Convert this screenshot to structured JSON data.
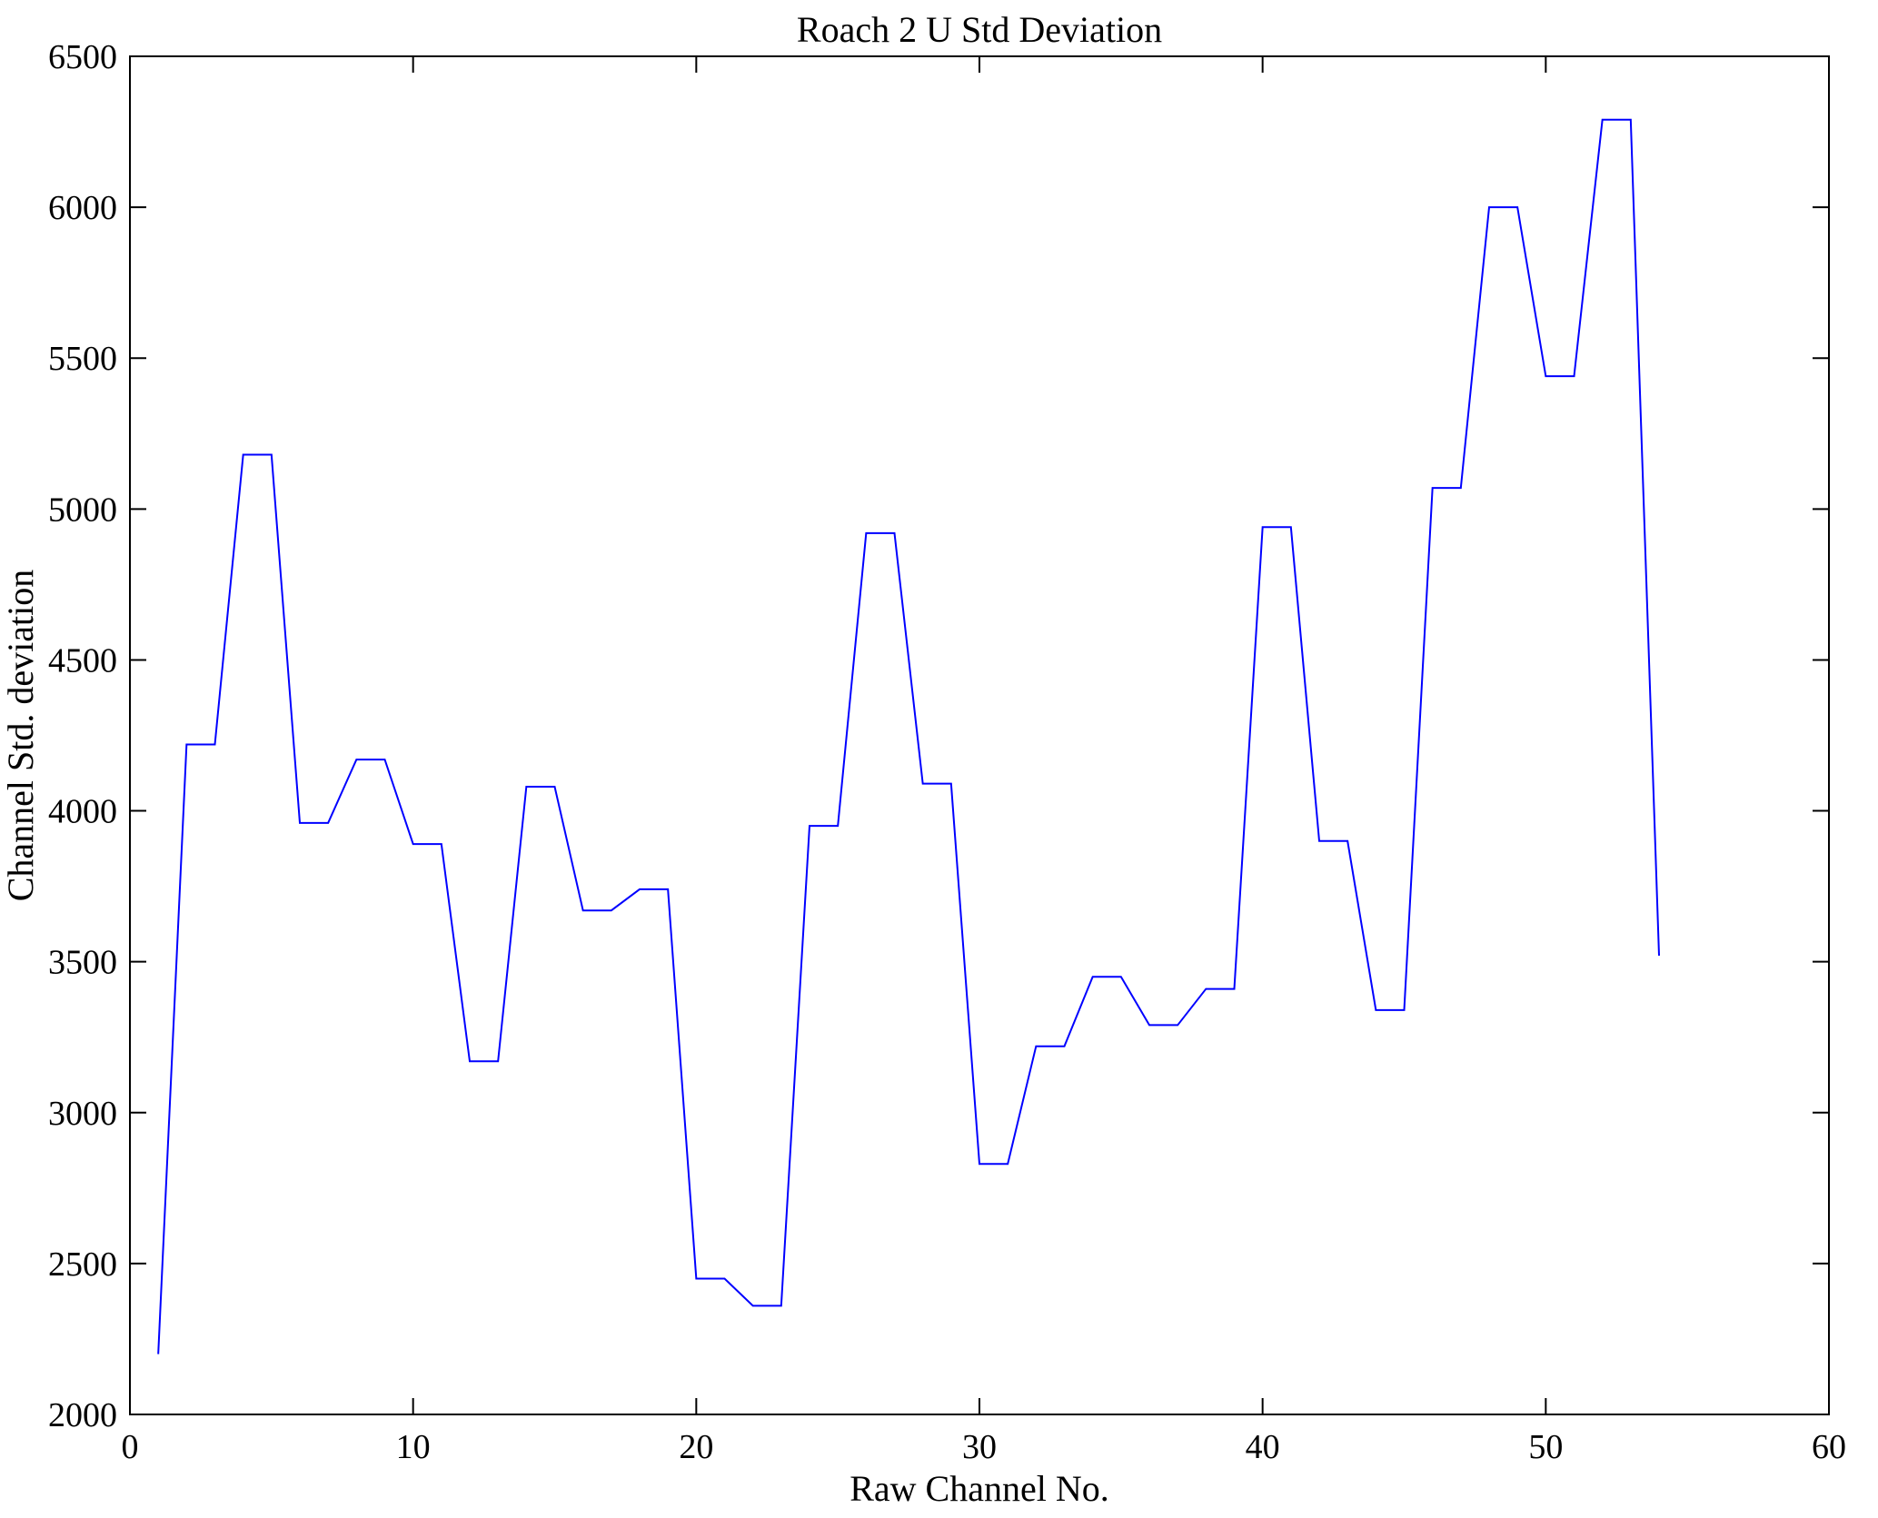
{
  "figure": {
    "background": "#ffffff"
  },
  "chart_data": {
    "type": "line",
    "title": "Roach 2 U Std Deviation",
    "xlabel": "Raw Channel No.",
    "ylabel": "Channel Std. deviation",
    "xlim": [
      0,
      60
    ],
    "ylim": [
      2000,
      6500
    ],
    "x_ticks": [
      0,
      10,
      20,
      30,
      40,
      50,
      60
    ],
    "y_ticks": [
      2000,
      2500,
      3000,
      3500,
      4000,
      4500,
      5000,
      5500,
      6000,
      6500
    ],
    "grid": false,
    "legend": "none",
    "line_color": "#0000ff",
    "axis_color": "#000000",
    "x": [
      1,
      2,
      3,
      4,
      5,
      6,
      7,
      8,
      9,
      10,
      11,
      12,
      13,
      14,
      15,
      16,
      17,
      18,
      19,
      20,
      21,
      22,
      23,
      24,
      25,
      26,
      27,
      28,
      29,
      30,
      31,
      32,
      33,
      34,
      35,
      36,
      37,
      38,
      39,
      40,
      41,
      42,
      43,
      44,
      45,
      46,
      47,
      48,
      49,
      50,
      51,
      52,
      53,
      54
    ],
    "y": [
      2200,
      4220,
      4220,
      5180,
      5180,
      3960,
      3960,
      4170,
      4170,
      3890,
      3890,
      3170,
      3170,
      4080,
      4080,
      3670,
      3670,
      3740,
      3740,
      2450,
      2450,
      2360,
      2360,
      3950,
      3950,
      4920,
      4920,
      4090,
      4090,
      2830,
      2830,
      3220,
      3220,
      3450,
      3450,
      3290,
      3290,
      3410,
      3410,
      4940,
      4940,
      3900,
      3900,
      3340,
      3340,
      5070,
      5070,
      6000,
      6000,
      5440,
      5440,
      6290,
      6290,
      3520
    ]
  }
}
